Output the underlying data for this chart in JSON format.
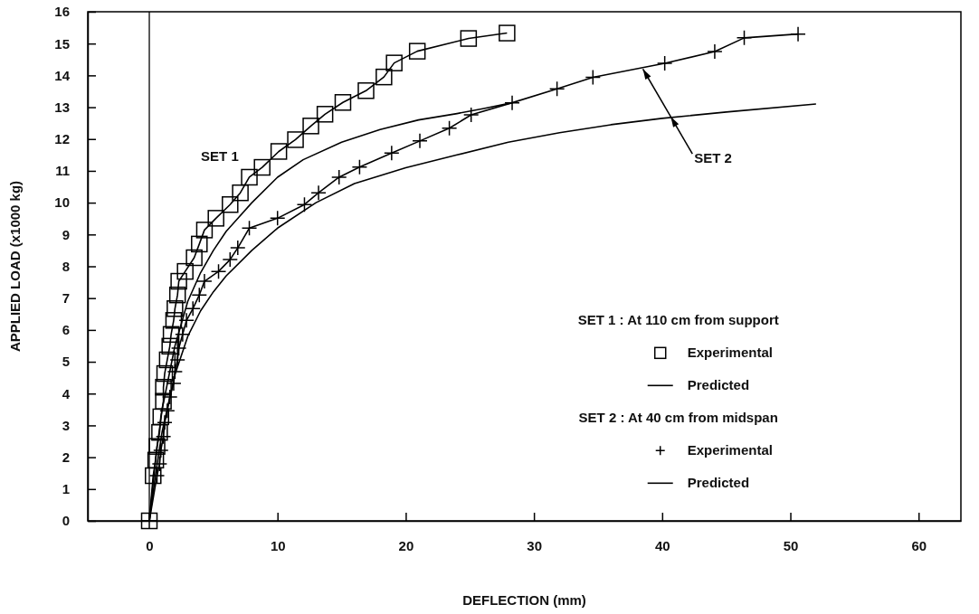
{
  "chart_data": {
    "type": "line",
    "xlabel": "DEFLECTION (mm)",
    "ylabel": "APPLIED LOAD (x1000 kg)",
    "xlim": [
      -4.8,
      63.3
    ],
    "xticks": [
      0,
      10,
      20,
      30,
      40,
      50,
      60
    ],
    "ylim": [
      0,
      16
    ],
    "yticks": [
      0,
      1,
      2,
      3,
      4,
      5,
      6,
      7,
      8,
      9,
      10,
      11,
      12,
      13,
      14,
      15,
      16
    ],
    "grid": false,
    "legend": "bottom right",
    "line_style": "solid",
    "ref_lines": [
      {
        "axis": "x",
        "value": 0
      }
    ],
    "annotations": [
      "SET 1",
      {
        "text": "SET 2",
        "x": 38.5,
        "y": 14.2
      },
      "SET 1 : At 110 cm from support",
      "SET 2 : At 40 cm from midspan"
    ],
    "series": [
      {
        "name": "Experimental",
        "color": "#000000",
        "marker": "square",
        "x": [
          0,
          0.3,
          0.5,
          0.6,
          0.8,
          0.9,
          1.1,
          1.1,
          1.2,
          1.4,
          1.6,
          1.7,
          1.9,
          2,
          2.2,
          2.3,
          2.8,
          3.5,
          3.9,
          4.3,
          5.2,
          6.3,
          7.1,
          7.8,
          8.8,
          10.1,
          11.4,
          12.6,
          13.7,
          15.1,
          16.9,
          18.3,
          19.1,
          20.9,
          24.9,
          27.9
        ],
        "values": [
          0,
          1.42,
          1.91,
          2.34,
          2.78,
          3.27,
          3.76,
          4.2,
          4.63,
          5.06,
          5.49,
          5.86,
          6.3,
          6.67,
          7.1,
          7.53,
          7.84,
          8.27,
          8.7,
          9.14,
          9.51,
          9.94,
          10.31,
          10.8,
          11.11,
          11.61,
          11.98,
          12.41,
          12.78,
          13.15,
          13.52,
          13.95,
          14.39,
          14.76,
          15.16,
          15.33
        ]
      },
      {
        "name": "Predicted",
        "color": "#000000",
        "marker": "none",
        "x": [
          0,
          0.5,
          1,
          2,
          3,
          4,
          5,
          6,
          8,
          10,
          12,
          15,
          18,
          21,
          24,
          26,
          28.3
        ],
        "values": [
          0,
          2,
          3.5,
          5.5,
          6.9,
          7.8,
          8.5,
          9.1,
          10,
          10.8,
          11.35,
          11.9,
          12.3,
          12.6,
          12.8,
          12.95,
          13.14
        ]
      },
      {
        "name": "Experimental",
        "color": "#000000",
        "marker": "cross",
        "x": [
          0,
          0.6,
          0.8,
          0.9,
          1.1,
          1.2,
          1.4,
          1.6,
          1.9,
          2,
          2.2,
          2.3,
          2.6,
          2.9,
          3.4,
          3.9,
          4.3,
          5.4,
          6.3,
          6.9,
          7.8,
          10,
          12.1,
          13.2,
          14.8,
          16.4,
          18.9,
          21.1,
          23.4,
          25.1,
          28.3,
          31.8,
          34.6,
          40.2,
          44.1,
          46.4,
          50.6
        ],
        "values": [
          0,
          1.42,
          1.79,
          2.22,
          2.65,
          3.09,
          3.46,
          3.89,
          4.32,
          4.69,
          5.06,
          5.43,
          5.86,
          6.3,
          6.67,
          7.1,
          7.53,
          7.84,
          8.21,
          8.58,
          9.2,
          9.51,
          9.94,
          10.31,
          10.8,
          11.12,
          11.56,
          11.94,
          12.34,
          12.76,
          13.14,
          13.58,
          13.94,
          14.38,
          14.75,
          15.18,
          15.3
        ]
      },
      {
        "name": "Predicted",
        "color": "#000000",
        "marker": "none",
        "x": [
          0,
          0.5,
          1,
          2,
          3,
          4,
          5,
          6,
          8,
          10,
          13,
          16,
          20,
          24,
          28,
          32,
          36,
          40,
          45,
          52
        ],
        "values": [
          0,
          1.5,
          2.8,
          4.6,
          5.8,
          6.6,
          7.2,
          7.7,
          8.5,
          9.2,
          10,
          10.6,
          11.1,
          11.5,
          11.9,
          12.2,
          12.45,
          12.65,
          12.85,
          13.1
        ]
      }
    ]
  }
}
